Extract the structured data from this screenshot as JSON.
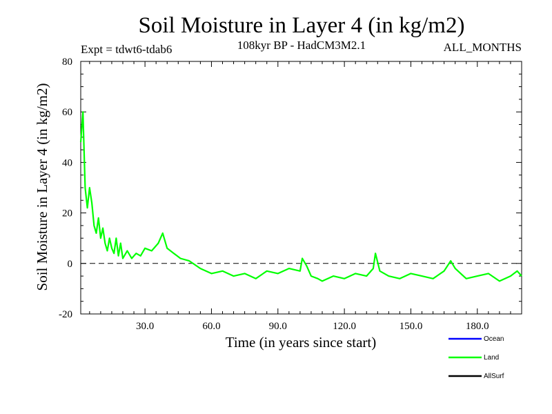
{
  "chart_data": {
    "type": "line",
    "title": "Soil Moisture in Layer 4 (in kg/m2)",
    "subtitle_left": "Expt = tdwt6-tdab6",
    "subtitle_center": "108kyr BP - HadCM3M2.1",
    "subtitle_right": "ALL_MONTHS",
    "xlabel": "Time (in years since start)",
    "ylabel": "Soil Moisture in Layer 4 (in kg/m2)",
    "xlim": [
      1,
      200
    ],
    "ylim": [
      -20,
      80
    ],
    "xticks": [
      30,
      60,
      90,
      120,
      150,
      180
    ],
    "xtick_labels": [
      "30.0",
      "60.0",
      "90.0",
      "120.0",
      "150.0",
      "180.0"
    ],
    "yticks": [
      -20,
      0,
      20,
      40,
      60,
      80
    ],
    "ytick_labels": [
      "-20",
      "0",
      "20",
      "40",
      "60",
      "80"
    ],
    "zero_line": 0,
    "legend": [
      {
        "name": "Ocean",
        "color": "#0000ff"
      },
      {
        "name": "Land",
        "color": "#00ff00"
      },
      {
        "name": "AllSurf",
        "color": "#000000"
      }
    ],
    "series": [
      {
        "name": "Land",
        "color": "#00ff00",
        "x": [
          1,
          2,
          3,
          4,
          5,
          6,
          7,
          8,
          9,
          10,
          11,
          12,
          13,
          14,
          15,
          16,
          17,
          18,
          19,
          20,
          22,
          24,
          26,
          28,
          30,
          33,
          36,
          38,
          40,
          43,
          46,
          50,
          55,
          60,
          65,
          70,
          75,
          80,
          85,
          90,
          95,
          100,
          101,
          103,
          105,
          108,
          110,
          115,
          120,
          125,
          130,
          133,
          134,
          136,
          140,
          145,
          150,
          155,
          160,
          165,
          168,
          170,
          175,
          180,
          185,
          190,
          195,
          198,
          200
        ],
        "values": [
          48,
          60,
          30,
          22,
          30,
          24,
          15,
          12,
          18,
          10,
          14,
          8,
          5,
          10,
          6,
          4,
          10,
          3,
          8,
          2,
          5,
          2,
          4,
          3,
          6,
          5,
          8,
          12,
          6,
          4,
          2,
          1,
          -2,
          -4,
          -3,
          -5,
          -4,
          -6,
          -3,
          -4,
          -2,
          -3,
          2,
          -1,
          -5,
          -6,
          -7,
          -5,
          -6,
          -4,
          -5,
          -2,
          4,
          -3,
          -5,
          -6,
          -4,
          -5,
          -6,
          -3,
          1,
          -2,
          -6,
          -5,
          -4,
          -7,
          -5,
          -3,
          -5
        ]
      }
    ]
  }
}
